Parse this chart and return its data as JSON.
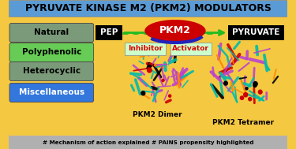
{
  "title": "PYRUVATE KINASE M2 (PKM2) MODULATORS",
  "title_bg": "#5b9bd5",
  "title_color": "#000000",
  "bg_color": "#f5c842",
  "bottom_bar_color": "#b0b0b0",
  "bottom_text": "# Mechanism of action explained # PAINS propensity highlighted",
  "bottom_text_color": "#000000",
  "labels_left": [
    "Natural",
    "Polyphenolic",
    "Heterocyclic",
    "Miscellaneous"
  ],
  "labels_left_colors": [
    "#7a9a7a",
    "#66cc55",
    "#7a9a7a",
    "#3377dd"
  ],
  "labels_left_text_colors": [
    "#000000",
    "#000000",
    "#000000",
    "#ffffff"
  ],
  "pep_bg": "#000000",
  "pep_text": "PEP",
  "pep_text_color": "#ffffff",
  "pyruvate_bg": "#000000",
  "pyruvate_text": "PYRUVATE",
  "pyruvate_text_color": "#ffffff",
  "pkm2_ellipse_color": "#cc0000",
  "pkm2_text": "PKM2",
  "pkm2_text_color": "#ffffff",
  "pkm2_arc_color": "#2222bb",
  "arrow_color": "#22bb22",
  "inhibitor_text": "Inhibitor",
  "activator_text": "Activator",
  "inhibitor_color": "#dd0000",
  "activator_color": "#dd0000",
  "inhibitor_box_color": "#ccffcc",
  "activator_box_color": "#ccffcc",
  "dimer_label": "PKM2 Dimer",
  "tetramer_label": "PKM2 Tetramer",
  "protein_colors_main": [
    "#cc44cc",
    "#00ccaa",
    "#009900",
    "#cc0000",
    "#000000",
    "#ff8800"
  ],
  "protein_ribbon_cyan": "#00ccaa",
  "protein_ribbon_purple": "#bb44bb",
  "protein_ribbon_green": "#009900"
}
